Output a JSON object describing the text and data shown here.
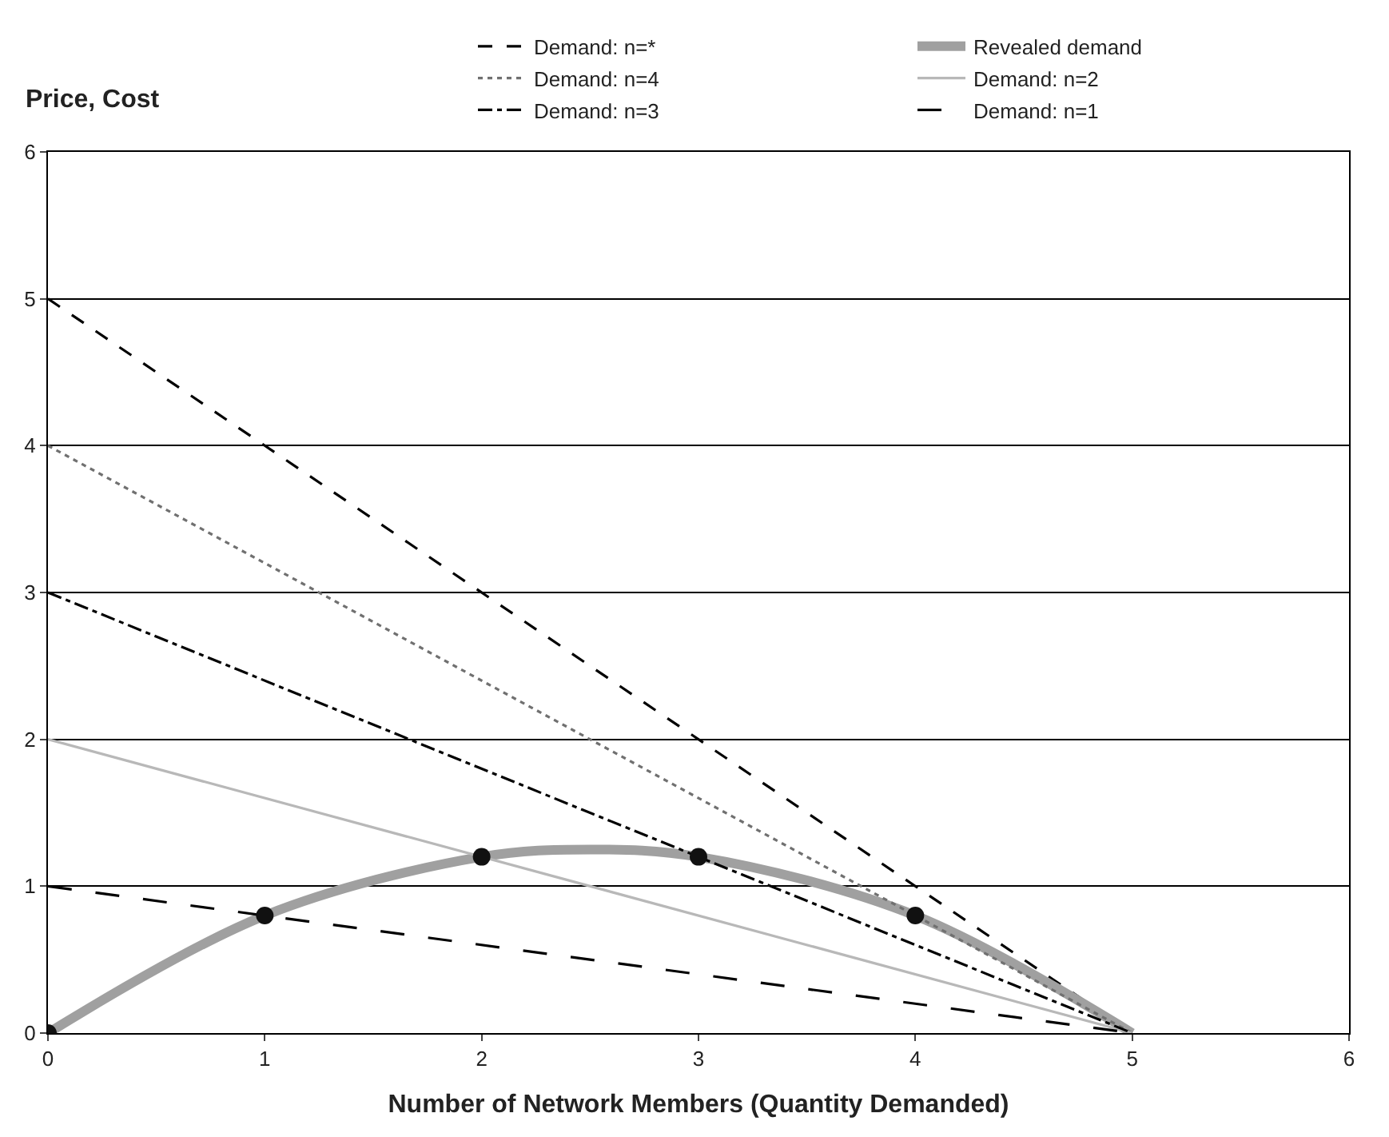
{
  "chart_data": {
    "type": "line",
    "xlabel": "Number of Network Members (Quantity Demanded)",
    "ylabel": "Price, Cost",
    "xlim": [
      0,
      6
    ],
    "ylim": [
      0,
      6
    ],
    "xticks": [
      0,
      1,
      2,
      3,
      4,
      5,
      6
    ],
    "yticks": [
      0,
      1,
      2,
      3,
      4,
      5,
      6
    ],
    "grid": "y",
    "legend": "top right",
    "series": [
      {
        "name": "Demand: n=*",
        "color": "#000000",
        "line_style": "dashed",
        "x": [
          0,
          5
        ],
        "values": [
          5,
          0
        ]
      },
      {
        "name": "Revealed demand",
        "color": "#a0a0a0",
        "line_style": "solid",
        "x": [
          0,
          1,
          2,
          2.5,
          3,
          4,
          5
        ],
        "values": [
          0,
          0.8,
          1.2,
          1.25,
          1.2,
          0.8,
          0
        ]
      },
      {
        "name": "Demand: n=4",
        "color": "#707070",
        "line_style": "dotted",
        "x": [
          0,
          5
        ],
        "values": [
          4,
          0
        ]
      },
      {
        "name": "Demand: n=2",
        "color": "#b8b8b8",
        "line_style": "solid",
        "x": [
          0,
          5
        ],
        "values": [
          2,
          0
        ]
      },
      {
        "name": "Demand: n=3",
        "color": "#000000",
        "line_style": "dashdot",
        "x": [
          0,
          5
        ],
        "values": [
          3,
          0
        ]
      },
      {
        "name": "Demand: n=1",
        "color": "#000000",
        "line_style": "longdash",
        "x": [
          0,
          5
        ],
        "values": [
          1,
          0
        ]
      },
      {
        "type": "scatter",
        "color": "#111111",
        "marker": "circle",
        "x": [
          0,
          1,
          2,
          3,
          4
        ],
        "values": [
          0,
          0.8,
          1.2,
          1.2,
          0.8
        ]
      }
    ]
  }
}
